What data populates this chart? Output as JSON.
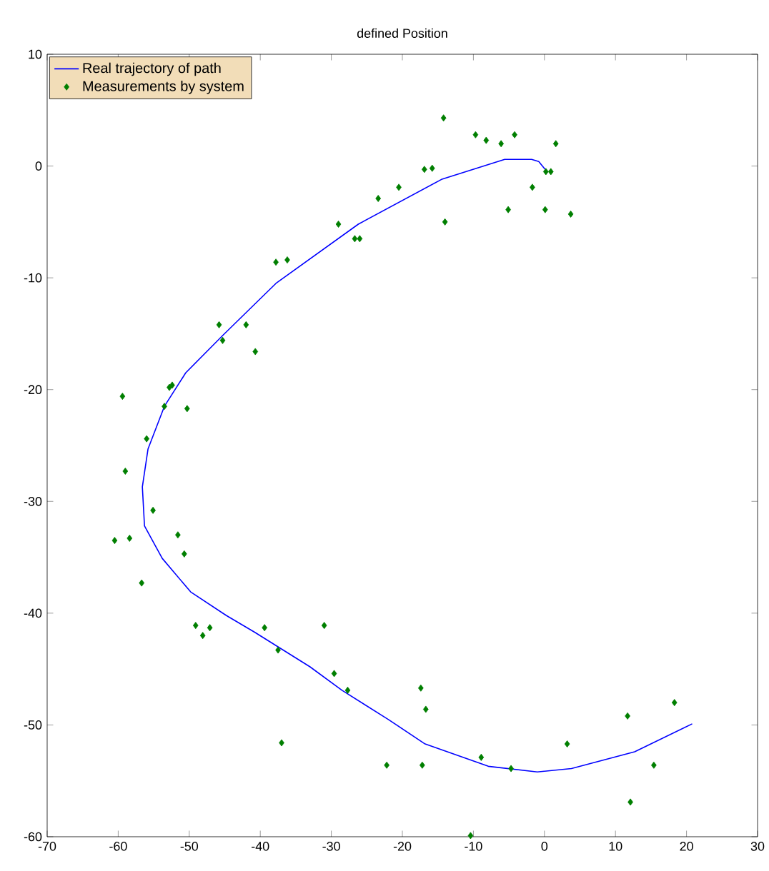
{
  "chart_data": {
    "type": "scatter",
    "title": "defined Position",
    "xlim": [
      -70,
      30
    ],
    "ylim": [
      -60,
      10
    ],
    "xticks": [
      -70,
      -60,
      -50,
      -40,
      -30,
      -20,
      -10,
      0,
      10,
      20,
      30
    ],
    "yticks": [
      -60,
      -50,
      -40,
      -30,
      -20,
      -10,
      0,
      10
    ],
    "grid": false,
    "legend": "top left",
    "series": [
      {
        "name": "Real trajectory of path",
        "type": "line",
        "color": "#0000ff",
        "line_style": "solid",
        "marker": "none",
        "x": [
          0.1,
          -0.8,
          -1.8,
          -5.6,
          -14.5,
          -26.2,
          -37.8,
          -45.2,
          -50.5,
          -53.5,
          -55.8,
          -56.6,
          -56.3,
          -53.8,
          -49.8,
          -44.8,
          -40.8,
          -33.0,
          -28.5,
          -22.0,
          -16.8,
          -7.9,
          -1.0,
          3.8,
          12.7,
          20.8
        ],
        "values": [
          -0.3,
          0.4,
          0.6,
          0.6,
          -1.2,
          -5.2,
          -10.5,
          -15.1,
          -18.5,
          -21.5,
          -25.3,
          -28.7,
          -32.2,
          -35.1,
          -38.1,
          -40.2,
          -41.7,
          -44.8,
          -46.9,
          -49.5,
          -51.7,
          -53.7,
          -54.2,
          -53.9,
          -52.4,
          -49.9
        ]
      },
      {
        "name": "Measurements by system",
        "color": "#007f00",
        "marker": "diamond",
        "x": [
          -37.8,
          -36.2,
          -29.0,
          -26.7,
          -26.0,
          -23.4,
          -20.5,
          -16.9,
          -15.8,
          -14.2,
          -14.0,
          -9.7,
          -8.2,
          -6.1,
          -4.2,
          -5.1,
          -1.7,
          0.2,
          0.9,
          1.6,
          0.1,
          3.7,
          -45.8,
          -45.3,
          -42.0,
          -40.7,
          -59.4,
          -52.8,
          -52.4,
          -53.5,
          -50.3,
          -56.0,
          -59.0,
          -55.1,
          -60.5,
          -58.4,
          -51.6,
          -50.7,
          -56.7,
          -49.1,
          -48.1,
          -47.1,
          -39.4,
          -37.5,
          -37.0,
          -31.0,
          -29.6,
          -27.7,
          -17.4,
          -16.7,
          -22.2,
          -17.2,
          -10.4,
          -8.9,
          -4.7,
          3.2,
          11.7,
          12.1,
          15.4,
          18.3
        ],
        "values": [
          -8.6,
          -8.4,
          -5.2,
          -6.5,
          -6.5,
          -2.9,
          -1.9,
          -0.3,
          -0.2,
          4.3,
          -5.0,
          2.8,
          2.3,
          2.0,
          2.8,
          -3.9,
          -1.9,
          -0.5,
          -0.5,
          2.0,
          -3.9,
          -4.3,
          -14.2,
          -15.6,
          -14.2,
          -16.6,
          -20.6,
          -19.8,
          -19.6,
          -21.5,
          -21.7,
          -24.4,
          -27.3,
          -30.8,
          -33.5,
          -33.3,
          -33.0,
          -34.7,
          -37.3,
          -41.1,
          -42.0,
          -41.3,
          -41.3,
          -43.3,
          -51.6,
          -41.1,
          -45.4,
          -46.9,
          -46.7,
          -48.6,
          -53.6,
          -53.6,
          -59.9,
          -52.9,
          -53.9,
          -51.7,
          -49.2,
          -56.9,
          -53.6,
          -48.0
        ]
      }
    ]
  }
}
